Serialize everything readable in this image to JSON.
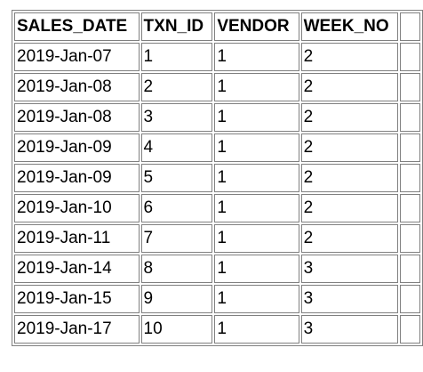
{
  "table": {
    "columns": [
      "SALES_DATE",
      "TXN_ID",
      "VENDOR",
      "WEEK_NO",
      ""
    ],
    "rows": [
      [
        "2019-Jan-07",
        "1",
        "1",
        "2",
        ""
      ],
      [
        "2019-Jan-08",
        "2",
        "1",
        "2",
        ""
      ],
      [
        "2019-Jan-08",
        "3",
        "1",
        "2",
        ""
      ],
      [
        "2019-Jan-09",
        "4",
        "1",
        "2",
        ""
      ],
      [
        "2019-Jan-09",
        "5",
        "1",
        "2",
        ""
      ],
      [
        "2019-Jan-10",
        "6",
        "1",
        "2",
        ""
      ],
      [
        "2019-Jan-11",
        "7",
        "1",
        "2",
        ""
      ],
      [
        "2019-Jan-14",
        "8",
        "1",
        "3",
        ""
      ],
      [
        "2019-Jan-15",
        "9",
        "1",
        "3",
        ""
      ],
      [
        "2019-Jan-17",
        "10",
        "1",
        "3",
        ""
      ]
    ]
  }
}
